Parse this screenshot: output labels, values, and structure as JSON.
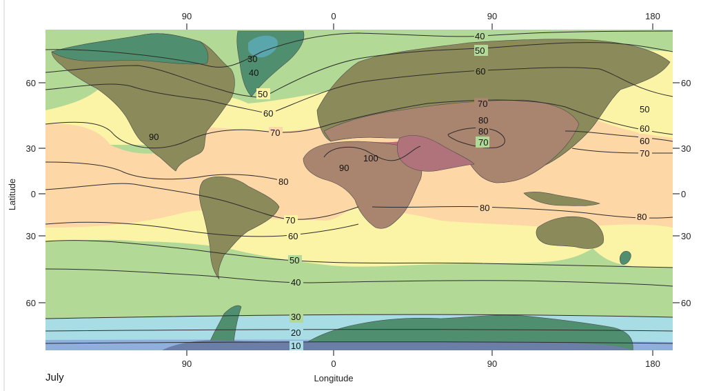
{
  "figure": {
    "month": "July",
    "xlabel": "Longitude",
    "ylabel": "Latitude"
  },
  "axes": {
    "top_ticks": [
      "90",
      "0",
      "90",
      "180"
    ],
    "bottom_ticks": [
      "90",
      "0",
      "90",
      "180"
    ],
    "left_ticks": [
      "60",
      "30",
      "0",
      "30",
      "60"
    ],
    "right_ticks": [
      "60",
      "30",
      "0",
      "30",
      "60"
    ]
  },
  "isolines": {
    "labels": [
      "40",
      "50",
      "30",
      "40",
      "60",
      "50",
      "60",
      "50",
      "70",
      "60",
      "70",
      "90",
      "80",
      "80",
      "70",
      "60",
      "70",
      "100",
      "90",
      "80",
      "80",
      "80",
      "70",
      "60",
      "50",
      "40",
      "30",
      "20",
      "10"
    ]
  },
  "colors": {
    "below_10": "#8fb0dd",
    "band_10_30": "#a9dde6",
    "band_30_50": "#b3d996",
    "band_50_70": "#fbf3a5",
    "band_70_90": "#fdd7a6",
    "above_90": "#c9707a",
    "land_cold": "#4f8f70",
    "land_warm": "#8a8a5a",
    "land_hot": "#a98570"
  }
}
